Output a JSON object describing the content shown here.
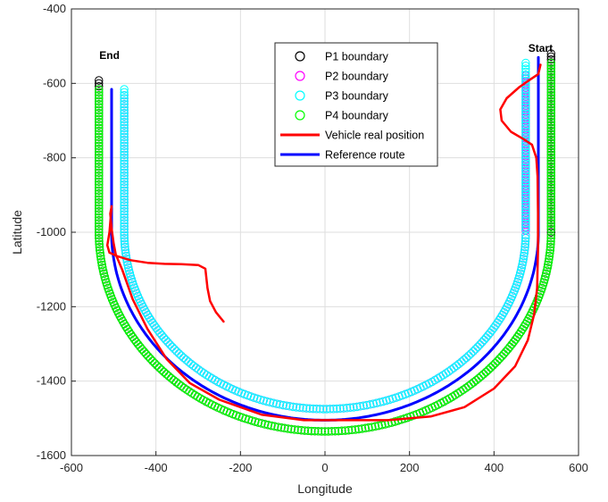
{
  "chart_data": {
    "type": "scatter",
    "xlabel": "Longitude",
    "ylabel": "Latitude",
    "xlim": [
      -600,
      600
    ],
    "ylim": [
      -1600,
      -400
    ],
    "xticks": [
      -600,
      -400,
      -200,
      0,
      200,
      400,
      600
    ],
    "yticks": [
      -1600,
      -1400,
      -1200,
      -1000,
      -800,
      -600,
      -400
    ],
    "grid": true,
    "legend_position": "top-center",
    "annotations": [
      {
        "text": "End",
        "x": -510,
        "y": -525
      },
      {
        "text": "Start",
        "x": 510,
        "y": -505
      }
    ],
    "series": [
      {
        "name": "P1 boundary",
        "style": "circle",
        "color": "#000000",
        "offset": 30,
        "u_start": -520,
        "u_end": -585
      },
      {
        "name": "P2 boundary",
        "style": "circle",
        "color": "#ff00ff",
        "offset": -30,
        "u_start": -580,
        "u_end": -630
      },
      {
        "name": "P3 boundary",
        "style": "circle",
        "color": "#00ffff",
        "offset": -30,
        "u_start": -545,
        "u_end": -615
      },
      {
        "name": "P4 boundary",
        "style": "circle",
        "color": "#00ff00",
        "offset": 30,
        "u_start": -545,
        "u_end": -615
      },
      {
        "name": "Vehicle real position",
        "style": "line",
        "color": "#ff0000",
        "points": [
          [
            510,
            -550
          ],
          [
            505,
            -575
          ],
          [
            485,
            -590
          ],
          [
            460,
            -610
          ],
          [
            430,
            -640
          ],
          [
            415,
            -670
          ],
          [
            418,
            -700
          ],
          [
            440,
            -730
          ],
          [
            470,
            -750
          ],
          [
            490,
            -765
          ],
          [
            500,
            -800
          ],
          [
            503,
            -850
          ],
          [
            504,
            -950
          ],
          [
            504,
            -1050
          ],
          [
            502,
            -1150
          ],
          [
            495,
            -1220
          ],
          [
            480,
            -1290
          ],
          [
            450,
            -1360
          ],
          [
            400,
            -1420
          ],
          [
            330,
            -1470
          ],
          [
            250,
            -1495
          ],
          [
            150,
            -1505
          ],
          [
            50,
            -1505
          ],
          [
            -50,
            -1505
          ],
          [
            -150,
            -1490
          ],
          [
            -250,
            -1450
          ],
          [
            -320,
            -1405
          ],
          [
            -375,
            -1340
          ],
          [
            -420,
            -1260
          ],
          [
            -455,
            -1180
          ],
          [
            -480,
            -1100
          ],
          [
            -495,
            -1060
          ],
          [
            -500,
            -1030
          ],
          [
            -505,
            -990
          ],
          [
            -508,
            -950
          ],
          [
            -505,
            -930
          ],
          [
            -510,
            -1000
          ],
          [
            -515,
            -1035
          ],
          [
            -510,
            -1055
          ],
          [
            -490,
            -1065
          ],
          [
            -460,
            -1075
          ],
          [
            -420,
            -1082
          ],
          [
            -380,
            -1085
          ],
          [
            -340,
            -1086
          ],
          [
            -300,
            -1088
          ],
          [
            -283,
            -1098
          ],
          [
            -278,
            -1150
          ],
          [
            -272,
            -1185
          ],
          [
            -258,
            -1215
          ],
          [
            -240,
            -1240
          ]
        ]
      },
      {
        "name": "Reference route",
        "style": "line",
        "color": "#0000ff",
        "offset": 0,
        "u_start": -530,
        "u_end": -615
      }
    ]
  }
}
